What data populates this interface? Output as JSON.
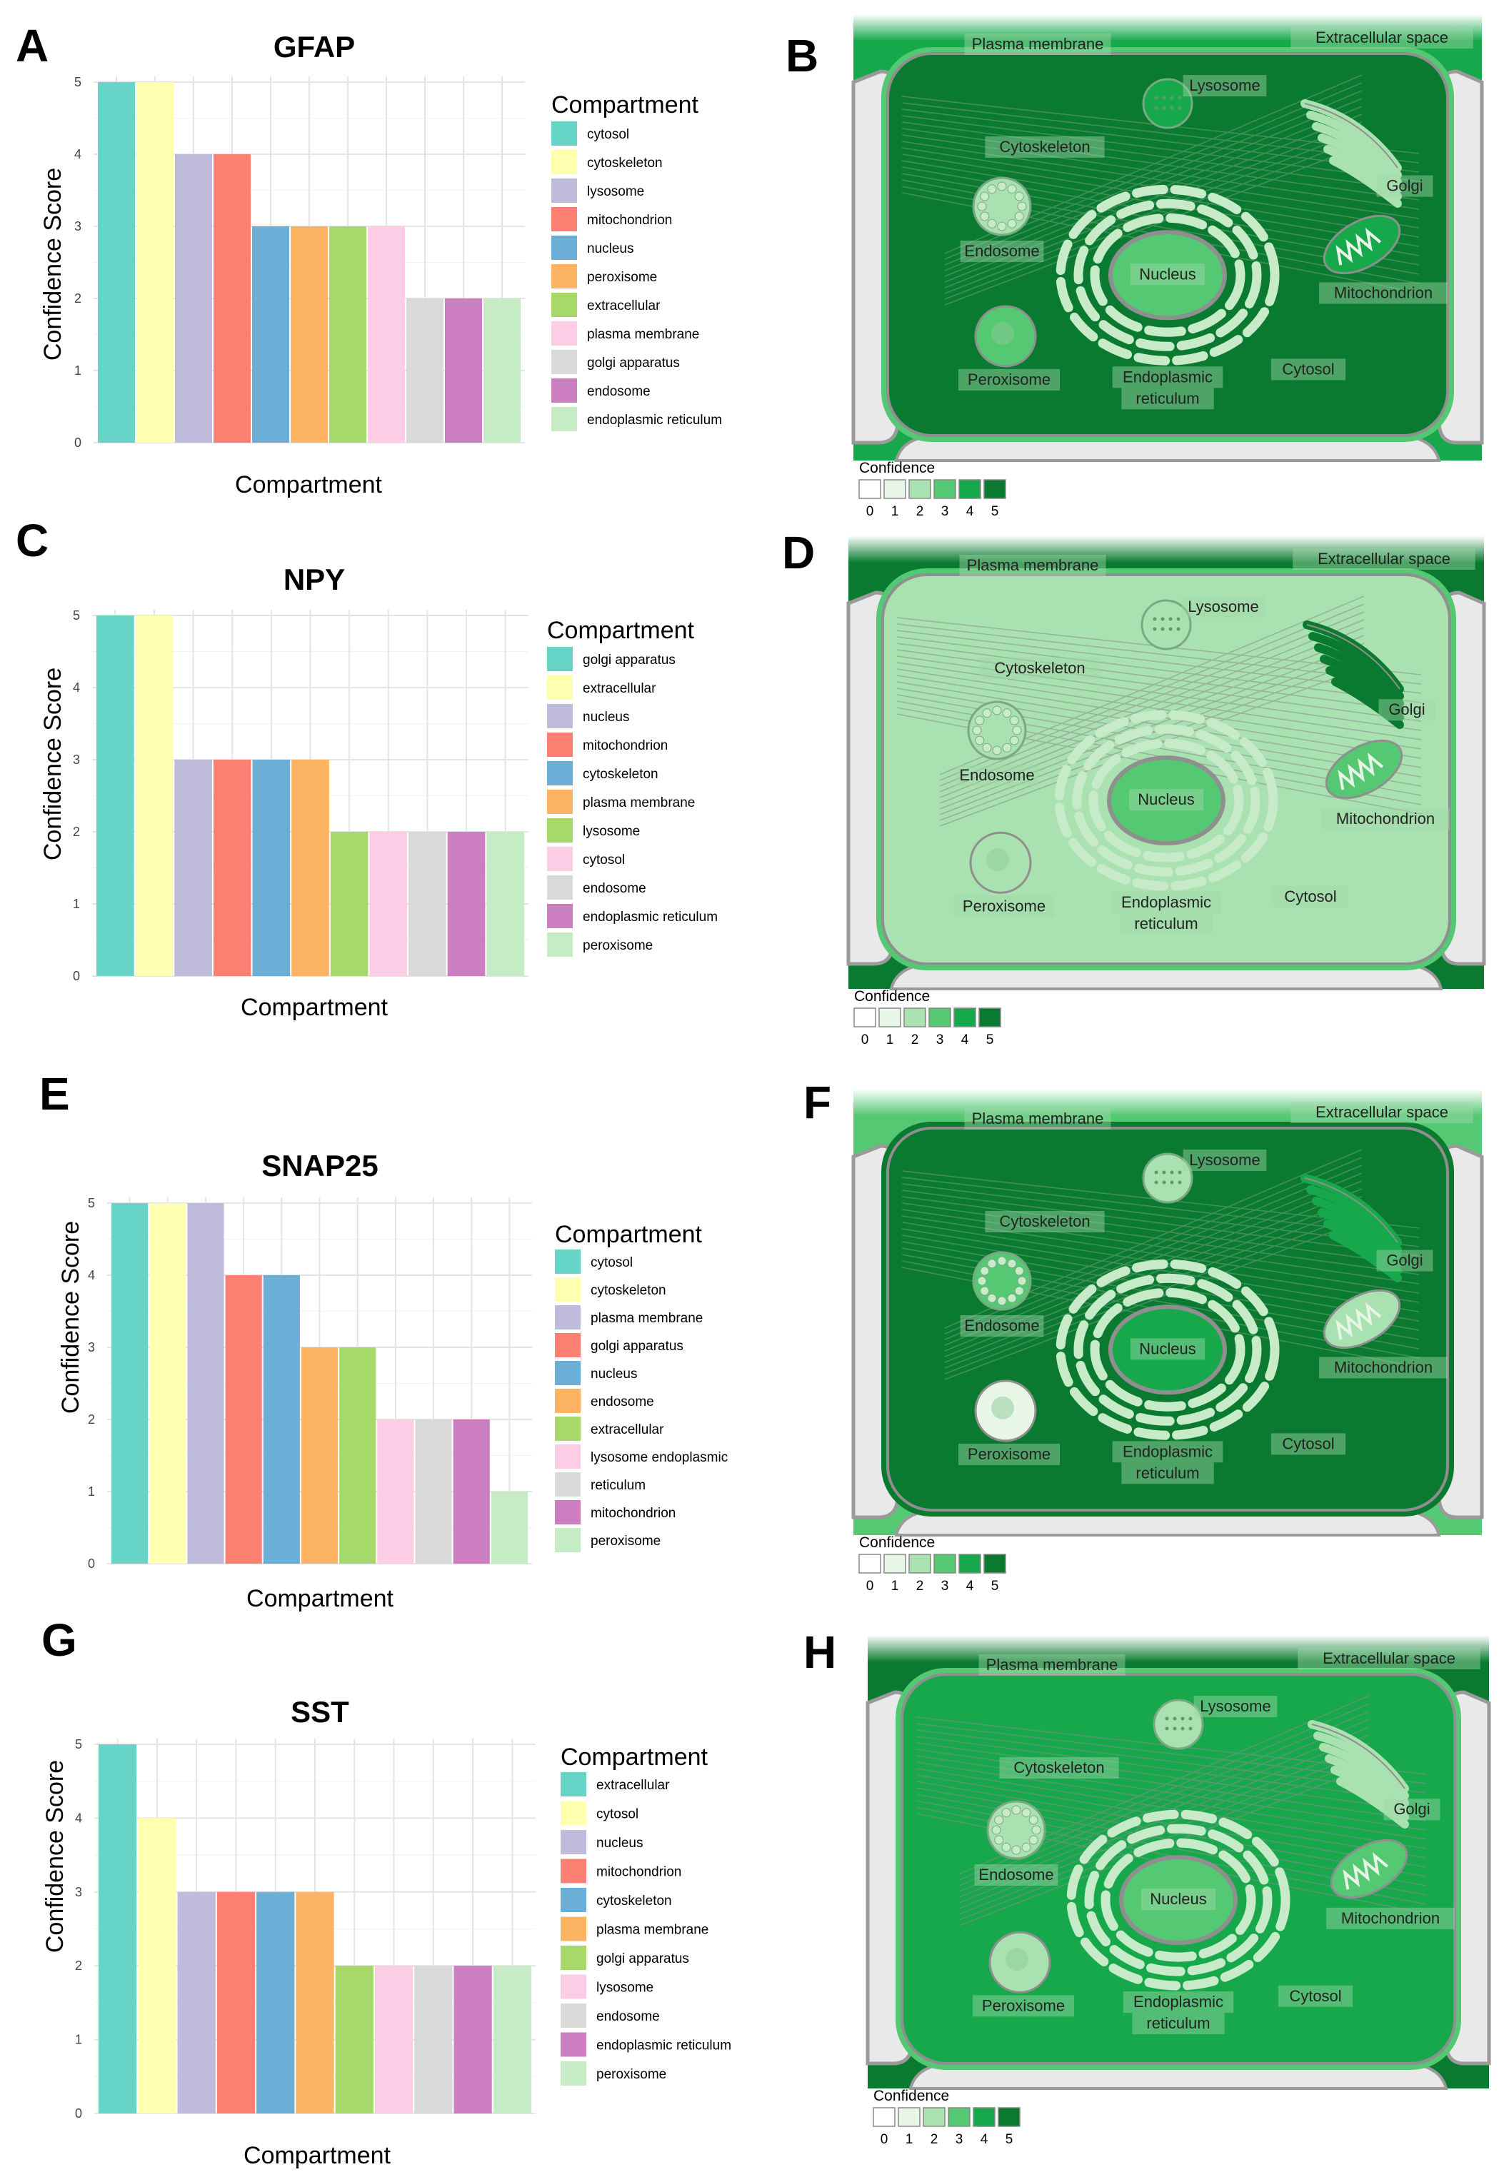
{
  "panels": {
    "A": "A",
    "B": "B",
    "C": "C",
    "D": "D",
    "E": "E",
    "F": "F",
    "G": "G",
    "H": "H"
  },
  "chart_data": [
    {
      "type": "bar",
      "title": "GFAP",
      "xlabel": "Compartment",
      "ylabel": "Confidence Score",
      "ylim": [
        0,
        5
      ],
      "legend_title": "Compartment",
      "legend_position": "right",
      "grid": true,
      "categories": [
        "cytosol",
        "cytoskeleton",
        "lysosome",
        "mitochondrion",
        "nucleus",
        "peroxisome",
        "extracellular",
        "plasma membrane",
        "golgi apparatus",
        "endosome",
        "endoplasmic reticulum"
      ],
      "values": [
        5,
        5,
        4,
        4,
        3,
        3,
        3,
        3,
        2,
        2,
        2
      ],
      "colors": [
        "#66D5C8",
        "#FFFFB0",
        "#BFBBDB",
        "#FB8072",
        "#6BAED6",
        "#FDB462",
        "#A6D96A",
        "#FCCDE5",
        "#D9D9D9",
        "#CB7FC0",
        "#C6ECC5"
      ]
    },
    {
      "type": "bar",
      "title": "NPY",
      "xlabel": "Compartment",
      "ylabel": "Confidence Score",
      "ylim": [
        0,
        5
      ],
      "legend_title": "Compartment",
      "legend_position": "right",
      "grid": true,
      "categories": [
        "golgi apparatus",
        "extracellular",
        "nucleus",
        "mitochondrion",
        "cytoskeleton",
        "plasma membrane",
        "lysosome",
        "cytosol",
        "endosome",
        "endoplasmic reticulum",
        "peroxisome"
      ],
      "values": [
        5,
        5,
        3,
        3,
        3,
        3,
        2,
        2,
        2,
        2,
        2
      ],
      "colors": [
        "#66D5C8",
        "#FFFFB0",
        "#BFBBDB",
        "#FB8072",
        "#6BAED6",
        "#FDB462",
        "#A6D96A",
        "#FCCDE5",
        "#D9D9D9",
        "#CB7FC0",
        "#C6ECC5"
      ]
    },
    {
      "type": "bar",
      "title": "SNAP25",
      "xlabel": "Compartment",
      "ylabel": "Confidence Score",
      "ylim": [
        0,
        5
      ],
      "legend_title": "Compartment",
      "legend_position": "right",
      "grid": true,
      "categories": [
        "cytosol",
        "cytoskeleton",
        "plasma membrane",
        "golgi apparatus",
        "nucleus",
        "endosome",
        "extracellular",
        "lysosome endoplasmic",
        "reticulum",
        "mitochondrion",
        "peroxisome"
      ],
      "values": [
        5,
        5,
        5,
        4,
        4,
        3,
        3,
        2,
        2,
        2,
        1
      ],
      "colors": [
        "#66D5C8",
        "#FFFFB0",
        "#BFBBDB",
        "#FB8072",
        "#6BAED6",
        "#FDB462",
        "#A6D96A",
        "#FCCDE5",
        "#D9D9D9",
        "#CB7FC0",
        "#C6ECC5"
      ]
    },
    {
      "type": "bar",
      "title": "SST",
      "xlabel": "Compartment",
      "ylabel": "Confidence Score",
      "ylim": [
        0,
        5
      ],
      "legend_title": "Compartment",
      "legend_position": "right",
      "grid": true,
      "categories": [
        "extracellular",
        "cytosol",
        "nucleus",
        "mitochondrion",
        "cytoskeleton",
        "plasma membrane",
        "golgi apparatus",
        "lysosome",
        "endosome",
        "endoplasmic reticulum",
        "peroxisome"
      ],
      "values": [
        5,
        4,
        3,
        3,
        3,
        3,
        2,
        2,
        2,
        2,
        2
      ],
      "colors": [
        "#66D5C8",
        "#FFFFB0",
        "#BFBBDB",
        "#FB8072",
        "#6BAED6",
        "#FDB462",
        "#A6D96A",
        "#FCCDE5",
        "#D9D9D9",
        "#CB7FC0",
        "#C6ECC5"
      ]
    }
  ],
  "cells": [
    {
      "extracellular": 4,
      "plasma_membrane": 3,
      "cytosol": 5,
      "cytoskeleton": 5,
      "lysosome": 4,
      "golgi": 2,
      "endosome": 2,
      "nucleus": 3,
      "er": 2,
      "mitochondrion": 4,
      "peroxisome": 3
    },
    {
      "extracellular": 5,
      "plasma_membrane": 3,
      "cytosol": 2,
      "cytoskeleton": 3,
      "lysosome": 2,
      "golgi": 5,
      "endosome": 2,
      "nucleus": 3,
      "er": 2,
      "mitochondrion": 3,
      "peroxisome": 2
    },
    {
      "extracellular": 3,
      "plasma_membrane": 5,
      "cytosol": 5,
      "cytoskeleton": 5,
      "lysosome": 2,
      "golgi": 4,
      "endosome": 3,
      "nucleus": 4,
      "er": 2,
      "mitochondrion": 2,
      "peroxisome": 1
    },
    {
      "extracellular": 5,
      "plasma_membrane": 3,
      "cytosol": 4,
      "cytoskeleton": 3,
      "lysosome": 2,
      "golgi": 2,
      "endosome": 2,
      "nucleus": 3,
      "er": 2,
      "mitochondrion": 3,
      "peroxisome": 2
    }
  ],
  "cell_labels": {
    "plasma_membrane": "Plasma membrane",
    "extracellular": "Extracellular space",
    "lysosome": "Lysosome",
    "cytoskeleton": "Cytoskeleton",
    "golgi": "Golgi",
    "endosome": "Endosome",
    "nucleus": "Nucleus",
    "mitochondrion": "Mitochondrion",
    "peroxisome": "Peroxisome",
    "er_line1": "Endoplasmic",
    "er_line2": "reticulum",
    "cytosol": "Cytosol"
  },
  "confidence_legend": {
    "title": "Confidence",
    "levels": [
      "0",
      "1",
      "2",
      "3",
      "4",
      "5"
    ],
    "colors": [
      "#FFFFFF",
      "#E7F6E7",
      "#A9E2B0",
      "#55C873",
      "#17A84C",
      "#0A7A30"
    ]
  }
}
